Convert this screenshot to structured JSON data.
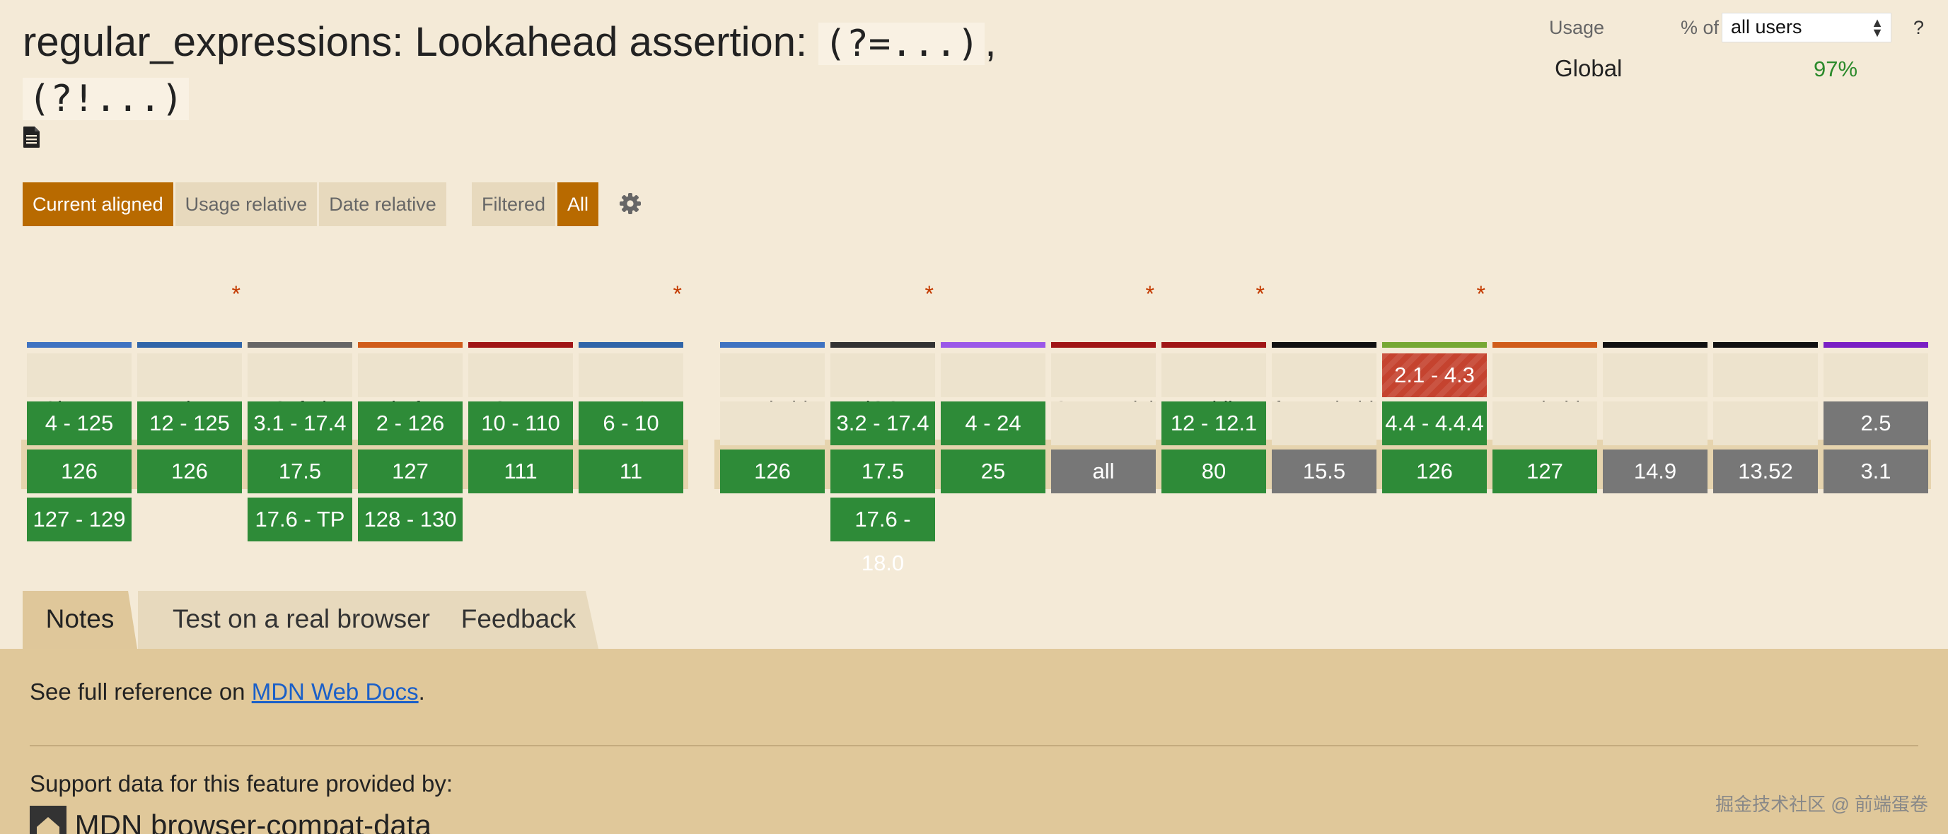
{
  "title": {
    "prefix": "regular_expressions: Lookahead assertion: ",
    "code1": "(?=...)",
    "sep": ",",
    "code2": "(?!...)"
  },
  "icons": {
    "doc": "document-icon",
    "settings": "gear-icon",
    "warning": "warning-icon",
    "select_arrows": "select-arrows-icon"
  },
  "usage": {
    "label": "Usage",
    "pct_of": "% of",
    "select_value": "all users",
    "help": "?",
    "region": "Global",
    "value": "97%"
  },
  "view_toggles": [
    {
      "label": "Current aligned",
      "active": true
    },
    {
      "label": "Usage relative",
      "active": false
    },
    {
      "label": "Date relative",
      "active": false
    }
  ],
  "filter_toggles": [
    {
      "label": "Filtered",
      "active": false
    },
    {
      "label": "All",
      "active": true
    }
  ],
  "colors": {
    "supported": "#2e8b38",
    "unsupported": "#c5432f",
    "unknown": "#777777",
    "accent": "#b86a00"
  },
  "browsers": [
    {
      "name": "Chrome",
      "asterisk": false,
      "bar": "#3f73c1",
      "cells": [
        "",
        "y|4 - 125",
        "y|126",
        "y|127 - 129"
      ]
    },
    {
      "name": "Edge",
      "asterisk": true,
      "bar": "#3065a8",
      "cells": [
        "",
        "y|12 - 125",
        "y|126",
        ""
      ]
    },
    {
      "name": "Safari",
      "asterisk": false,
      "bar": "#666666",
      "cells": [
        "",
        "y|3.1 - 17.4",
        "y|17.5",
        "y|17.6 - TP"
      ]
    },
    {
      "name": "Firefox",
      "asterisk": false,
      "bar": "#d05c1a",
      "cells": [
        "",
        "y|2 - 126",
        "y|127",
        "y|128 - 130"
      ]
    },
    {
      "name": "Opera",
      "asterisk": false,
      "bar": "#a01616",
      "cells": [
        "",
        "y|10 - 110",
        "y|111",
        ""
      ]
    },
    {
      "name": "IE",
      "asterisk": true,
      "warning": true,
      "bar": "#3065a8",
      "cells": [
        "",
        "y|6 - 10",
        "y|11",
        ""
      ]
    },
    {
      "name": "Chrome for Android",
      "asterisk": false,
      "bar": "#3f73c1",
      "cells": [
        "",
        "",
        "y|126",
        ""
      ]
    },
    {
      "name": "Safari on iOS",
      "asterisk": true,
      "bar": "#333333",
      "cells": [
        "",
        "y|3.2 - 17.4",
        "y|17.5",
        "y|17.6 - 18.0"
      ]
    },
    {
      "name": "Samsung Internet",
      "asterisk": false,
      "bar": "#9b58e8",
      "cells": [
        "",
        "y|4 - 24",
        "y|25",
        ""
      ]
    },
    {
      "name": "Opera Mini",
      "asterisk": true,
      "bar": "#a01616",
      "cells": [
        "",
        "",
        "u|all",
        ""
      ]
    },
    {
      "name": "Opera Mobile",
      "asterisk": true,
      "bar": "#a01616",
      "cells": [
        "",
        "y|12 - 12.1",
        "y|80",
        ""
      ]
    },
    {
      "name": "UC Browser for Android",
      "asterisk": false,
      "bar": "#111111",
      "cells": [
        "",
        "",
        "u|15.5",
        ""
      ]
    },
    {
      "name": "Android Browser",
      "asterisk": true,
      "bar": "#76a834",
      "cells": [
        "n|2.1 - 4.3",
        "y|4.4 - 4.4.4",
        "y|126",
        ""
      ]
    },
    {
      "name": "Firefox for Android",
      "asterisk": false,
      "bar": "#d05c1a",
      "cells": [
        "",
        "",
        "y|127",
        ""
      ]
    },
    {
      "name": "QQ Browser",
      "asterisk": false,
      "bar": "#111111",
      "cells": [
        "",
        "",
        "u|14.9",
        ""
      ]
    },
    {
      "name": "Baidu Browser",
      "asterisk": false,
      "bar": "#111111",
      "cells": [
        "",
        "",
        "u|13.52",
        ""
      ]
    },
    {
      "name": "KaiOS Browser",
      "asterisk": false,
      "bar": "#7a1fc4",
      "cells": [
        "",
        "u|2.5",
        "u|3.1",
        ""
      ]
    }
  ],
  "tabs": [
    {
      "label": "Notes",
      "active": true
    },
    {
      "label": "Test on a real browser",
      "active": false
    },
    {
      "label": "Feedback",
      "active": false
    }
  ],
  "notes": {
    "reference_prefix": "See full reference on ",
    "reference_link": "MDN Web Docs",
    "reference_suffix": ".",
    "support_label": "Support data for this feature provided by:",
    "source_name": "MDN browser-compat-data"
  },
  "watermark": "掘金技术社区 @ 前端蛋卷"
}
